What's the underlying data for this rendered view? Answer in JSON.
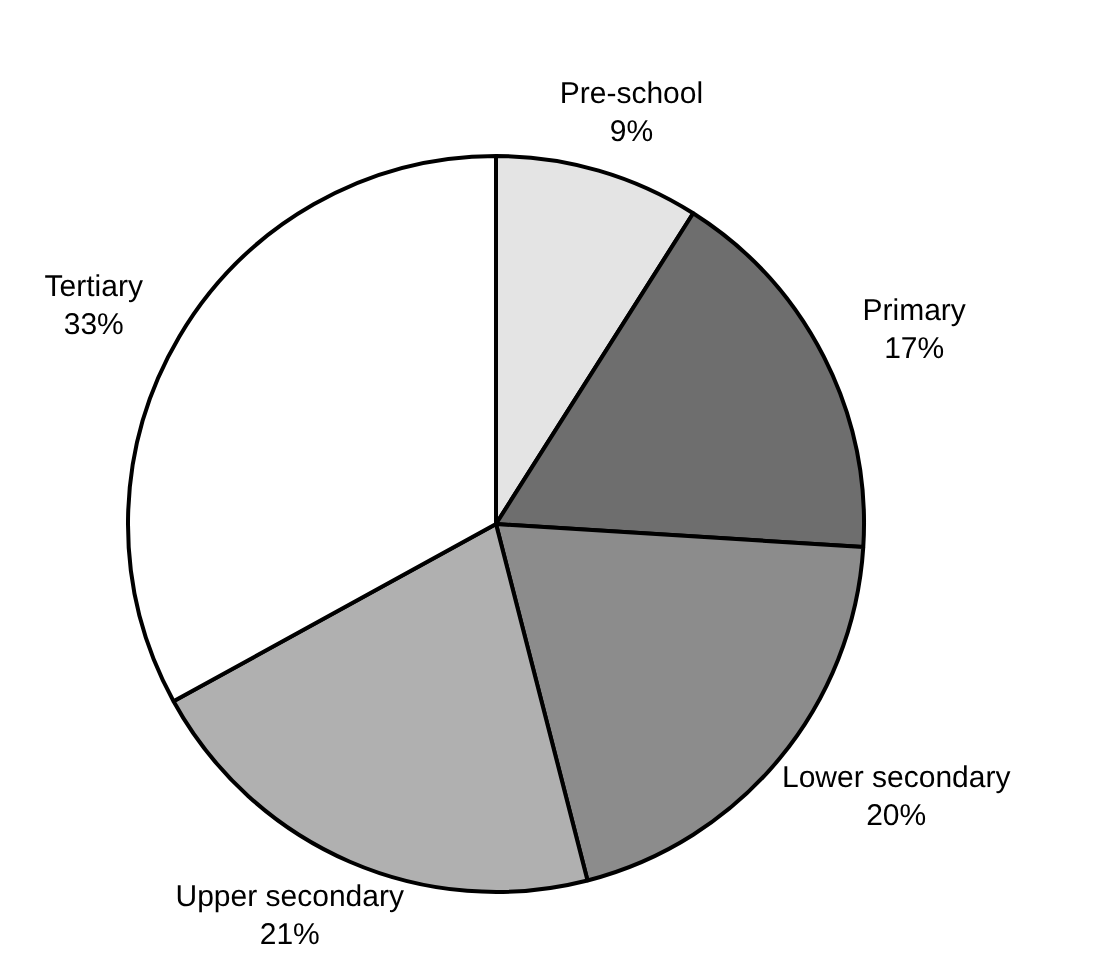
{
  "chart_data": {
    "type": "pie",
    "categories": [
      "Pre-school",
      "Primary",
      "Lower secondary",
      "Upper secondary",
      "Tertiary"
    ],
    "values": [
      9,
      17,
      20,
      21,
      33
    ],
    "value_labels": [
      "9%",
      "17%",
      "20%",
      "21%",
      "33%"
    ],
    "colors": [
      "#e4e4e4",
      "#6e6e6e",
      "#8c8c8c",
      "#b0b0b0",
      "#ffffff"
    ],
    "legend": false
  }
}
